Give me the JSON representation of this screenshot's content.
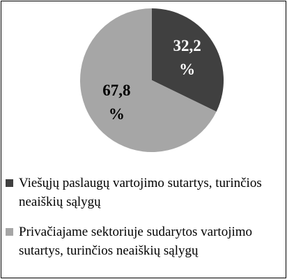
{
  "chart_data": {
    "type": "pie",
    "categories": [
      "Viešųjų paslaugų vartojimo sutartys, turinčios neaiškių sąlygų",
      "Privačiajame sektoriuje sudarytos vartojimo sutartys, turinčios neaiškių sąlygų"
    ],
    "values": [
      32.2,
      67.8
    ],
    "value_labels": [
      "32,2 %",
      "67,8 %"
    ],
    "colors": [
      "#404040",
      "#a6a6a6"
    ],
    "label_colors": [
      "#ffffff",
      "#000000"
    ],
    "legend": "bottom"
  }
}
